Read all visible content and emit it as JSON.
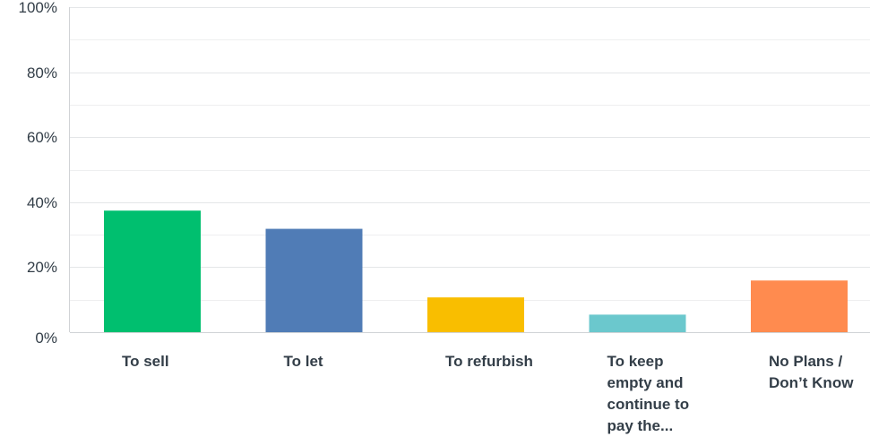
{
  "chart_data": {
    "type": "bar",
    "categories": [
      "To sell",
      "To let",
      "To refurbish",
      "To keep\nempty and\ncontinue to\npay the...",
      "No Plans /\nDon’t Know"
    ],
    "values": [
      37.4,
      31.8,
      10.7,
      5.4,
      15.9
    ],
    "colors": [
      "#00bf6f",
      "#507cb6",
      "#f9be00",
      "#6bc8cd",
      "#ff8b4f"
    ],
    "ylim": [
      0,
      100
    ],
    "yticks": [
      "0%",
      "20%",
      "40%",
      "60%",
      "80%",
      "100%"
    ],
    "yticks_values": [
      0,
      20,
      40,
      60,
      80,
      100
    ],
    "minor_gridlines": [
      10,
      30,
      50,
      70,
      90
    ],
    "grid": true,
    "title": "",
    "xlabel": "",
    "ylabel": ""
  }
}
